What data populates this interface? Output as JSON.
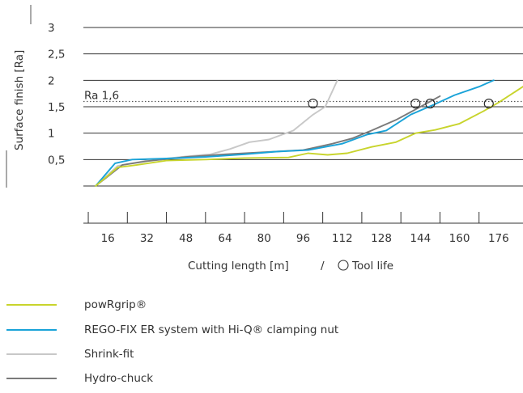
{
  "chart_data": {
    "type": "line",
    "xlabel": "Cutting length [m]",
    "xlabel_suffix": "Tool life",
    "ylabel": "Surface finish [Ra]",
    "x_ticks": [
      16,
      32,
      48,
      64,
      80,
      96,
      112,
      128,
      144,
      160,
      176
    ],
    "y_ticks": [
      0.5,
      1,
      1.5,
      2,
      2.5,
      3
    ],
    "y_tick_labels": [
      "0,5",
      "1",
      "1,5",
      "2",
      "2,5",
      "3"
    ],
    "xlim": [
      6,
      186
    ],
    "ylim": [
      0,
      3
    ],
    "grid": "horizontal",
    "reference_line": {
      "label": "Ra 1,6",
      "y": 1.6,
      "style": "dotted"
    },
    "series": [
      {
        "name": "powRgrip®",
        "color": "#c8d42c",
        "points": [
          [
            11,
            0
          ],
          [
            20,
            0.35
          ],
          [
            28,
            0.4
          ],
          [
            40,
            0.48
          ],
          [
            56,
            0.5
          ],
          [
            72,
            0.53
          ],
          [
            90,
            0.54
          ],
          [
            98,
            0.62
          ],
          [
            106,
            0.59
          ],
          [
            114,
            0.62
          ],
          [
            124,
            0.74
          ],
          [
            134,
            0.83
          ],
          [
            142,
            1.0
          ],
          [
            150,
            1.06
          ],
          [
            160,
            1.18
          ],
          [
            170,
            1.42
          ],
          [
            176,
            1.58
          ],
          [
            190,
            2.0
          ]
        ],
        "tool_life": [
          172,
          1.56
        ]
      },
      {
        "name": "REGO-FIX ER system with Hi-Q® clamping nut",
        "color": "#1aa3d8",
        "points": [
          [
            11,
            0
          ],
          [
            19,
            0.43
          ],
          [
            26,
            0.5
          ],
          [
            40,
            0.52
          ],
          [
            56,
            0.55
          ],
          [
            72,
            0.6
          ],
          [
            85,
            0.65
          ],
          [
            98,
            0.68
          ],
          [
            112,
            0.8
          ],
          [
            122,
            0.97
          ],
          [
            130,
            1.05
          ],
          [
            140,
            1.35
          ],
          [
            150,
            1.55
          ],
          [
            158,
            1.72
          ],
          [
            168,
            1.88
          ],
          [
            174,
            2.0
          ]
        ],
        "tool_life": [
          148,
          1.56
        ]
      },
      {
        "name": "Shrink-fit",
        "color": "#c8c8c8",
        "points": [
          [
            11,
            0
          ],
          [
            20,
            0.38
          ],
          [
            32,
            0.48
          ],
          [
            48,
            0.56
          ],
          [
            58,
            0.6
          ],
          [
            66,
            0.7
          ],
          [
            74,
            0.83
          ],
          [
            82,
            0.88
          ],
          [
            92,
            1.05
          ],
          [
            100,
            1.35
          ],
          [
            105,
            1.5
          ],
          [
            110,
            2.0
          ]
        ],
        "tool_life": [
          100,
          1.56
        ]
      },
      {
        "name": "Hydro-chuck",
        "color": "#7a7a7a",
        "points": [
          [
            11,
            0
          ],
          [
            22,
            0.4
          ],
          [
            32,
            0.47
          ],
          [
            48,
            0.55
          ],
          [
            64,
            0.6
          ],
          [
            80,
            0.64
          ],
          [
            96,
            0.68
          ],
          [
            108,
            0.8
          ],
          [
            116,
            0.9
          ],
          [
            124,
            1.05
          ],
          [
            134,
            1.25
          ],
          [
            142,
            1.45
          ],
          [
            152,
            1.7
          ]
        ],
        "tool_life": [
          142,
          1.56
        ]
      }
    ]
  }
}
